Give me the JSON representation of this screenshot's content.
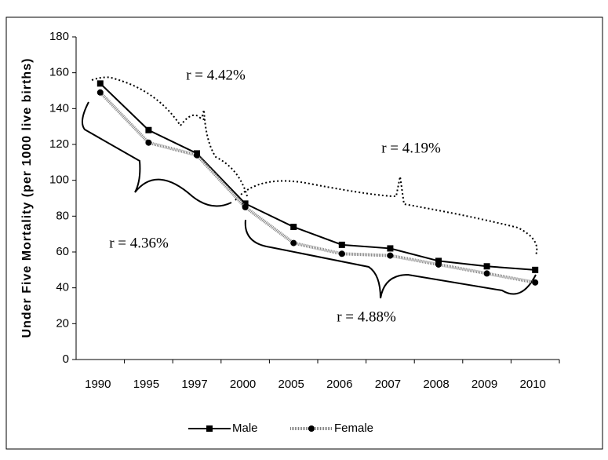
{
  "chart_data": {
    "type": "line",
    "y_label": "Under Five Mortality (per 1000 live births)",
    "categories": [
      "1990",
      "1995",
      "1997",
      "2000",
      "2005",
      "2006",
      "2007",
      "2008",
      "2009",
      "2010"
    ],
    "series": [
      {
        "name": "Male",
        "color": "#000000",
        "values": [
          154,
          128,
          115,
          87,
          74,
          64,
          62,
          55,
          52,
          50
        ]
      },
      {
        "name": "Female",
        "color": "#808080",
        "values": [
          149,
          121,
          114,
          85,
          65,
          59,
          58,
          53,
          48,
          43
        ]
      }
    ],
    "ylim": [
      0,
      180
    ],
    "yticks": [
      0,
      20,
      40,
      60,
      80,
      100,
      120,
      140,
      160,
      180
    ],
    "annotations": [
      "r = 4.42%",
      "r = 4.19%",
      "r = 4.36%",
      "r = 4.88%"
    ],
    "legend": "bottom"
  }
}
